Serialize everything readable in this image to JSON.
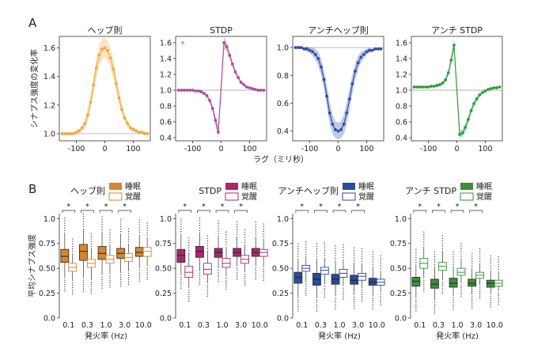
{
  "panels": {
    "a": "A",
    "b": "B"
  },
  "colors": {
    "hebb": "#f2a93a",
    "stdp": "#b0489c",
    "anti_hebb": "#2b4ea8",
    "anti_stdp": "#2f9a3c",
    "hebb_box": "#d7862d",
    "stdp_box": "#a7286f",
    "anti_hebb_box": "#2a4a9c",
    "anti_stdp_box": "#3a8f3a"
  },
  "chart_data": [
    {
      "type": "line",
      "panel": "A",
      "title": "ヘッブ則",
      "color_key": "hebb",
      "ylabel": "シナプス強度の変化率",
      "xlabel": "ラグ（ミリ秒）",
      "xlim": [
        -160,
        160
      ],
      "ylim": [
        0.95,
        1.68
      ],
      "xticks": [
        "-100",
        "0",
        "100"
      ],
      "yticks": [
        "1.0",
        "1.2",
        "1.4",
        "1.6"
      ],
      "reference_line": 1.0,
      "x": [
        -150,
        -140,
        -130,
        -120,
        -110,
        -100,
        -90,
        -80,
        -70,
        -60,
        -50,
        -40,
        -30,
        -20,
        -10,
        0,
        10,
        20,
        30,
        40,
        50,
        60,
        70,
        80,
        90,
        100,
        110,
        120,
        130,
        140,
        150
      ],
      "y": [
        1.0,
        1.0,
        1.0,
        1.0,
        1.0,
        1.01,
        1.02,
        1.04,
        1.07,
        1.13,
        1.22,
        1.34,
        1.46,
        1.55,
        1.59,
        1.6,
        1.58,
        1.53,
        1.45,
        1.35,
        1.25,
        1.17,
        1.11,
        1.07,
        1.04,
        1.03,
        1.02,
        1.01,
        1.01,
        1.0,
        1.0
      ],
      "band": [
        0.01,
        0.01,
        0.01,
        0.01,
        0.01,
        0.01,
        0.02,
        0.02,
        0.03,
        0.04,
        0.05,
        0.06,
        0.07,
        0.07,
        0.07,
        0.07,
        0.07,
        0.07,
        0.07,
        0.06,
        0.05,
        0.04,
        0.03,
        0.02,
        0.02,
        0.02,
        0.01,
        0.01,
        0.01,
        0.01,
        0.01
      ]
    },
    {
      "type": "line",
      "panel": "A",
      "title": "STDP",
      "color_key": "stdp",
      "xlim": [
        -160,
        160
      ],
      "ylim": [
        0.36,
        1.68
      ],
      "xticks": [
        "-100",
        "0",
        "100"
      ],
      "yticks": [
        "0.4",
        "0.6",
        "0.8",
        "1.0",
        "1.2",
        "1.4",
        "1.6"
      ],
      "reference_line": 1.0,
      "outlier": [
        -135,
        1.6
      ],
      "x": [
        -150,
        -140,
        -130,
        -120,
        -110,
        -100,
        -90,
        -80,
        -70,
        -60,
        -50,
        -40,
        -30,
        -20,
        -10,
        10,
        20,
        30,
        40,
        50,
        60,
        70,
        80,
        90,
        100,
        110,
        120,
        130,
        140,
        150
      ],
      "y": [
        1.0,
        1.0,
        1.0,
        1.0,
        1.0,
        1.0,
        0.99,
        0.99,
        0.98,
        0.96,
        0.93,
        0.87,
        0.77,
        0.62,
        0.47,
        1.6,
        1.55,
        1.44,
        1.33,
        1.23,
        1.16,
        1.1,
        1.07,
        1.04,
        1.03,
        1.02,
        1.01,
        1.0,
        1.0,
        1.0
      ],
      "band": [
        0.01,
        0.01,
        0.01,
        0.01,
        0.01,
        0.01,
        0.01,
        0.01,
        0.02,
        0.02,
        0.02,
        0.03,
        0.04,
        0.06,
        0.08,
        0.08,
        0.06,
        0.05,
        0.04,
        0.03,
        0.03,
        0.02,
        0.02,
        0.01,
        0.01,
        0.01,
        0.01,
        0.01,
        0.01,
        0.01
      ]
    },
    {
      "type": "line",
      "panel": "A",
      "title": "アンチヘッブ則",
      "color_key": "anti_hebb",
      "xlim": [
        -160,
        160
      ],
      "ylim": [
        0.33,
        1.08
      ],
      "xticks": [
        "-100",
        "0",
        "100"
      ],
      "yticks": [
        "0.4",
        "0.6",
        "0.8",
        "1.0"
      ],
      "reference_line": 1.0,
      "x": [
        -150,
        -140,
        -130,
        -120,
        -110,
        -100,
        -90,
        -80,
        -70,
        -60,
        -50,
        -40,
        -30,
        -20,
        -10,
        0,
        10,
        20,
        30,
        40,
        50,
        60,
        70,
        80,
        90,
        100,
        110,
        120,
        130,
        140,
        150
      ],
      "y": [
        1.0,
        1.0,
        1.0,
        0.99,
        0.99,
        0.98,
        0.97,
        0.95,
        0.92,
        0.86,
        0.77,
        0.65,
        0.53,
        0.45,
        0.41,
        0.4,
        0.41,
        0.45,
        0.53,
        0.63,
        0.74,
        0.83,
        0.89,
        0.93,
        0.95,
        0.97,
        0.98,
        0.98,
        0.99,
        0.99,
        0.99
      ],
      "band": [
        0.01,
        0.01,
        0.01,
        0.01,
        0.02,
        0.02,
        0.03,
        0.04,
        0.05,
        0.06,
        0.07,
        0.08,
        0.08,
        0.07,
        0.06,
        0.06,
        0.06,
        0.07,
        0.08,
        0.08,
        0.07,
        0.06,
        0.05,
        0.04,
        0.03,
        0.02,
        0.02,
        0.01,
        0.01,
        0.01,
        0.01
      ]
    },
    {
      "type": "line",
      "panel": "A",
      "title": "アンチ STDP",
      "color_key": "anti_stdp",
      "xlim": [
        -160,
        160
      ],
      "ylim": [
        0.36,
        1.68
      ],
      "xticks": [
        "-100",
        "0",
        "100"
      ],
      "yticks": [
        "0.4",
        "0.6",
        "0.8",
        "1.0",
        "1.2",
        "1.4",
        "1.6"
      ],
      "reference_line": 1.0,
      "x": [
        -150,
        -140,
        -130,
        -120,
        -110,
        -100,
        -90,
        -80,
        -70,
        -60,
        -50,
        -40,
        -30,
        -20,
        -10,
        10,
        20,
        30,
        40,
        50,
        60,
        70,
        80,
        90,
        100,
        110,
        120,
        130,
        140,
        150
      ],
      "y": [
        1.04,
        1.04,
        1.04,
        1.04,
        1.04,
        1.04,
        1.05,
        1.05,
        1.06,
        1.07,
        1.09,
        1.13,
        1.22,
        1.38,
        1.57,
        0.44,
        0.46,
        0.53,
        0.63,
        0.74,
        0.83,
        0.89,
        0.94,
        0.97,
        0.99,
        1.01,
        1.02,
        1.03,
        1.03,
        1.04
      ],
      "band": [
        0.01,
        0.01,
        0.01,
        0.01,
        0.01,
        0.01,
        0.01,
        0.01,
        0.02,
        0.02,
        0.02,
        0.03,
        0.04,
        0.06,
        0.08,
        0.05,
        0.05,
        0.05,
        0.05,
        0.04,
        0.04,
        0.03,
        0.02,
        0.02,
        0.02,
        0.01,
        0.01,
        0.01,
        0.01,
        0.01
      ]
    },
    {
      "type": "box",
      "panel": "B",
      "title": "ヘッブ則",
      "color_key": "hebb_box",
      "legend": [
        "睡眠",
        "覚醒"
      ],
      "ylabel": "平均シナプス強度",
      "xlabel": "発火率 (Hz)",
      "categories": [
        "0.1",
        "0.3",
        "1.0",
        "3.0",
        "10.0"
      ],
      "yticks": [
        "0.0",
        "0.25",
        "0.50",
        "0.75",
        "1.0"
      ],
      "ylim": [
        0,
        1.05
      ],
      "significance": [
        "*",
        "*",
        "*",
        "*"
      ],
      "series": [
        {
          "name": "睡眠",
          "boxes": [
            [
              0.4,
              0.56,
              0.62,
              0.69,
              0.86
            ],
            [
              0.4,
              0.58,
              0.67,
              0.74,
              0.9
            ],
            [
              0.43,
              0.59,
              0.65,
              0.72,
              0.87
            ],
            [
              0.45,
              0.6,
              0.65,
              0.7,
              0.85
            ],
            [
              0.5,
              0.62,
              0.66,
              0.71,
              0.84
            ]
          ]
        },
        {
          "name": "覚醒",
          "boxes": [
            [
              0.37,
              0.47,
              0.51,
              0.55,
              0.65
            ],
            [
              0.38,
              0.51,
              0.55,
              0.59,
              0.7
            ],
            [
              0.44,
              0.55,
              0.59,
              0.63,
              0.74
            ],
            [
              0.47,
              0.57,
              0.61,
              0.65,
              0.75
            ],
            [
              0.52,
              0.62,
              0.67,
              0.71,
              0.81
            ]
          ]
        }
      ]
    },
    {
      "type": "box",
      "panel": "B",
      "title": "STDP",
      "color_key": "stdp_box",
      "legend": [
        "睡眠",
        "覚醒"
      ],
      "xlabel": "",
      "categories": [
        "0.1",
        "0.3",
        "1.0",
        "3.0",
        "10.0"
      ],
      "yticks": [
        "0.0",
        "0.25",
        "0.50",
        "0.75",
        "1.0"
      ],
      "ylim": [
        0,
        1.05
      ],
      "significance": [
        "*",
        "*",
        "*",
        "*"
      ],
      "series": [
        {
          "name": "睡眠",
          "boxes": [
            [
              0.43,
              0.56,
              0.63,
              0.69,
              0.85
            ],
            [
              0.47,
              0.61,
              0.67,
              0.72,
              0.86
            ],
            [
              0.5,
              0.61,
              0.66,
              0.7,
              0.83
            ],
            [
              0.52,
              0.62,
              0.66,
              0.7,
              0.82
            ],
            [
              0.52,
              0.62,
              0.66,
              0.7,
              0.82
            ]
          ]
        },
        {
          "name": "覚醒",
          "boxes": [
            [
              0.3,
              0.41,
              0.46,
              0.52,
              0.66
            ],
            [
              0.35,
              0.44,
              0.49,
              0.55,
              0.68
            ],
            [
              0.42,
              0.51,
              0.55,
              0.6,
              0.72
            ],
            [
              0.46,
              0.55,
              0.59,
              0.63,
              0.74
            ],
            [
              0.51,
              0.62,
              0.66,
              0.69,
              0.8
            ]
          ]
        }
      ]
    },
    {
      "type": "box",
      "panel": "B",
      "title": "アンチヘッブ則",
      "color_key": "anti_hebb_box",
      "legend": [
        "睡眠",
        "覚醒"
      ],
      "xlabel": "発火率 (Hz)",
      "categories": [
        "0.1",
        "0.3",
        "1.0",
        "3.0",
        "10.0"
      ],
      "yticks": [
        "0.0",
        "0.25",
        "0.50",
        "0.75",
        "1.0"
      ],
      "ylim": [
        0,
        1.05
      ],
      "significance": [
        "*",
        "*",
        "*",
        "*"
      ],
      "series": [
        {
          "name": "睡眠",
          "boxes": [
            [
              0.2,
              0.35,
              0.41,
              0.46,
              0.6
            ],
            [
              0.2,
              0.33,
              0.39,
              0.45,
              0.6
            ],
            [
              0.22,
              0.34,
              0.39,
              0.44,
              0.58
            ],
            [
              0.23,
              0.34,
              0.38,
              0.43,
              0.56
            ],
            [
              0.22,
              0.33,
              0.36,
              0.4,
              0.52
            ]
          ]
        },
        {
          "name": "覚醒",
          "boxes": [
            [
              0.36,
              0.47,
              0.5,
              0.53,
              0.62
            ],
            [
              0.34,
              0.44,
              0.48,
              0.51,
              0.61
            ],
            [
              0.32,
              0.41,
              0.45,
              0.49,
              0.59
            ],
            [
              0.3,
              0.38,
              0.42,
              0.45,
              0.55
            ],
            [
              0.26,
              0.33,
              0.36,
              0.39,
              0.48
            ]
          ]
        }
      ]
    },
    {
      "type": "box",
      "panel": "B",
      "title": "アンチ STDP",
      "color_key": "anti_stdp_box",
      "legend": [
        "睡眠",
        "覚醒"
      ],
      "xlabel": "発火率 (Hz)",
      "categories": [
        "0.1",
        "0.3",
        "1.0",
        "3.0",
        "10.0"
      ],
      "yticks": [
        "0.0",
        "0.25",
        "0.50",
        "0.75",
        "1.0"
      ],
      "ylim": [
        0,
        1.05
      ],
      "significance": [
        "*",
        "*",
        "*",
        "*"
      ],
      "series": [
        {
          "name": "睡眠",
          "boxes": [
            [
              0.2,
              0.32,
              0.37,
              0.41,
              0.54
            ],
            [
              0.18,
              0.3,
              0.34,
              0.39,
              0.52
            ],
            [
              0.22,
              0.31,
              0.35,
              0.4,
              0.52
            ],
            [
              0.23,
              0.32,
              0.35,
              0.39,
              0.5
            ],
            [
              0.24,
              0.31,
              0.35,
              0.38,
              0.48
            ]
          ]
        },
        {
          "name": "覚醒",
          "boxes": [
            [
              0.4,
              0.5,
              0.55,
              0.6,
              0.72
            ],
            [
              0.38,
              0.48,
              0.52,
              0.56,
              0.68
            ],
            [
              0.35,
              0.43,
              0.46,
              0.5,
              0.6
            ],
            [
              0.33,
              0.4,
              0.43,
              0.46,
              0.55
            ],
            [
              0.27,
              0.32,
              0.35,
              0.38,
              0.47
            ]
          ]
        }
      ]
    }
  ]
}
